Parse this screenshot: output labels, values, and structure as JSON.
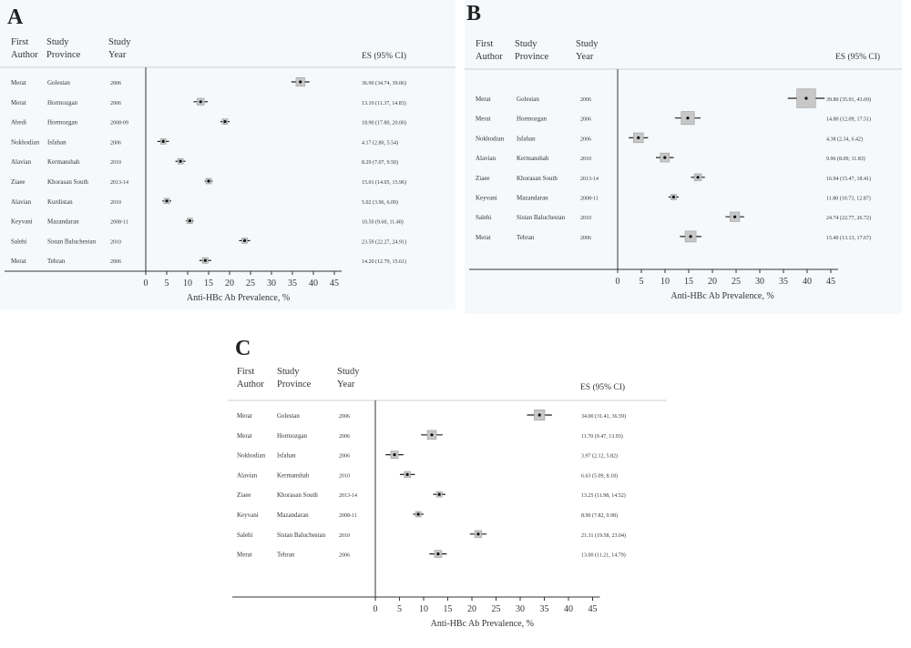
{
  "headers": {
    "author": "First\nAuthor",
    "province": "Study\nProvince",
    "year": "Study\nYear",
    "es": "ES (95% CI)"
  },
  "chart_data": [
    {
      "type": "forest",
      "panel": "A",
      "xlabel": "Anti-HBc Ab Prevalence, %",
      "xticks": [
        0,
        5,
        10,
        15,
        20,
        25,
        30,
        35,
        40,
        45
      ],
      "xlim": [
        0,
        45
      ],
      "rows": [
        {
          "author": "Merat",
          "province": "Golestan",
          "year": "2006",
          "es": 36.9,
          "lo": 34.74,
          "hi": 39.06,
          "label": "36.90 (34.74, 39.06)"
        },
        {
          "author": "Merat",
          "province": "Hormozgan",
          "year": "2006",
          "es": 13.1,
          "lo": 11.37,
          "hi": 14.83,
          "label": "13.10 (11.37, 14.83)"
        },
        {
          "author": "Abedi",
          "province": "Hormozgan",
          "year": "2008-09",
          "es": 18.9,
          "lo": 17.8,
          "hi": 20.0,
          "label": "18.90 (17.80, 20.00)"
        },
        {
          "author": "Nokhodian",
          "province": "Isfahan",
          "year": "2006",
          "es": 4.17,
          "lo": 2.8,
          "hi": 5.54,
          "label": "4.17 (2.80, 5.54)"
        },
        {
          "author": "Alavian",
          "province": "Kermanshah",
          "year": "2010",
          "es": 8.29,
          "lo": 7.07,
          "hi": 9.5,
          "label": "8.29 (7.07, 9.50)"
        },
        {
          "author": "Ziaee",
          "province": "Khorasan South",
          "year": "2013-14",
          "es": 15.01,
          "lo": 14.05,
          "hi": 15.96,
          "label": "15.01 (14.05, 15.96)"
        },
        {
          "author": "Alavian",
          "province": "Kurdistan",
          "year": "2010",
          "es": 5.02,
          "lo": 3.96,
          "hi": 6.09,
          "label": "5.02 (3.96, 6.09)"
        },
        {
          "author": "Keyvani",
          "province": "Mazandaran",
          "year": "2008-11",
          "es": 10.5,
          "lo": 9.6,
          "hi": 11.4,
          "label": "10.50 (9.60, 11.40)"
        },
        {
          "author": "Salehi",
          "province": "Sistan Baluchestan",
          "year": "2010",
          "es": 23.59,
          "lo": 22.27,
          "hi": 24.91,
          "label": "23.59 (22.27, 24.91)"
        },
        {
          "author": "Merat",
          "province": "Tehran",
          "year": "2006",
          "es": 14.2,
          "lo": 12.79,
          "hi": 15.61,
          "label": "14.20 (12.79, 15.61)"
        }
      ]
    },
    {
      "type": "forest",
      "panel": "B",
      "xlabel": "Anti-HBc Ab Prevalence, %",
      "xticks": [
        0,
        5,
        10,
        15,
        20,
        25,
        30,
        35,
        40,
        45
      ],
      "xlim": [
        0,
        45
      ],
      "rows": [
        {
          "author": "Merat",
          "province": "Golestan",
          "year": "2006",
          "es": 39.8,
          "lo": 35.91,
          "hi": 43.69,
          "label": "39.80 (35.91, 43.69)"
        },
        {
          "author": "Merat",
          "province": "Hormozgan",
          "year": "2006",
          "es": 14.8,
          "lo": 12.09,
          "hi": 17.51,
          "label": "14.80 (12.09, 17.51)"
        },
        {
          "author": "Nokhodian",
          "province": "Isfahan",
          "year": "2006",
          "es": 4.38,
          "lo": 2.34,
          "hi": 6.42,
          "label": "4.38 (2.34, 6.42)"
        },
        {
          "author": "Alavian",
          "province": "Kermanshah",
          "year": "2010",
          "es": 9.96,
          "lo": 8.09,
          "hi": 11.83,
          "label": "9.96 (8.09, 11.83)"
        },
        {
          "author": "Ziaee",
          "province": "Khorasan South",
          "year": "2013-14",
          "es": 16.94,
          "lo": 15.47,
          "hi": 18.41,
          "label": "16.94 (15.47, 18.41)"
        },
        {
          "author": "Keyvani",
          "province": "Mazandaran",
          "year": "2008-11",
          "es": 11.8,
          "lo": 10.73,
          "hi": 12.87,
          "label": "11.80 (10.73, 12.87)"
        },
        {
          "author": "Salehi",
          "province": "Sistan Baluchestan",
          "year": "2010",
          "es": 24.74,
          "lo": 22.77,
          "hi": 26.72,
          "label": "24.74 (22.77, 26.72)"
        },
        {
          "author": "Merat",
          "province": "Tehran",
          "year": "2006",
          "es": 15.4,
          "lo": 13.13,
          "hi": 17.67,
          "label": "15.40 (13.13, 17.67)"
        }
      ]
    },
    {
      "type": "forest",
      "panel": "C",
      "xlabel": "Anti-HBc Ab Prevalence, %",
      "xticks": [
        0,
        5,
        10,
        15,
        20,
        25,
        30,
        35,
        40,
        45
      ],
      "xlim": [
        0,
        45
      ],
      "rows": [
        {
          "author": "Merat",
          "province": "Golestan",
          "year": "2006",
          "es": 34.0,
          "lo": 31.41,
          "hi": 36.59,
          "label": "34.00 (31.41, 36.59)"
        },
        {
          "author": "Merat",
          "province": "Hormozgan",
          "year": "2006",
          "es": 11.7,
          "lo": 9.47,
          "hi": 13.93,
          "label": "11.70 (9.47, 13.93)"
        },
        {
          "author": "Nokhodian",
          "province": "Isfahan",
          "year": "2006",
          "es": 3.97,
          "lo": 2.12,
          "hi": 5.82,
          "label": "3.97 (2.12, 5.82)"
        },
        {
          "author": "Alavian",
          "province": "Kermanshah",
          "year": "2010",
          "es": 6.63,
          "lo": 5.09,
          "hi": 8.18,
          "label": "6.63 (5.09, 8.18)"
        },
        {
          "author": "Ziaee",
          "province": "Khorasan South",
          "year": "2013-14",
          "es": 13.25,
          "lo": 11.98,
          "hi": 14.52,
          "label": "13.25 (11.98, 14.52)"
        },
        {
          "author": "Keyvani",
          "province": "Mazandaran",
          "year": "2008-11",
          "es": 8.9,
          "lo": 7.82,
          "hi": 9.98,
          "label": "8.90 (7.82, 9.98)"
        },
        {
          "author": "Salehi",
          "province": "Sistan Baluchestan",
          "year": "2010",
          "es": 21.31,
          "lo": 19.58,
          "hi": 23.04,
          "label": "21.31 (19.58, 23.04)"
        },
        {
          "author": "Merat",
          "province": "Tehran",
          "year": "2006",
          "es": 13.0,
          "lo": 11.21,
          "hi": 14.79,
          "label": "13.00 (11.21, 14.79)"
        }
      ]
    }
  ]
}
